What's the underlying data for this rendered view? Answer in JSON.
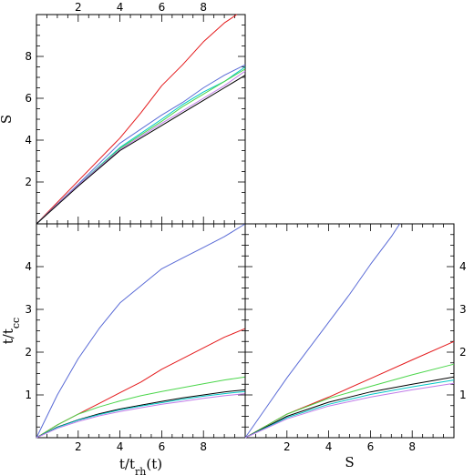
{
  "chart_data": [
    {
      "id": "top-left",
      "type": "line",
      "xlabel": "",
      "ylabel": "S",
      "xlim": [
        0,
        10
      ],
      "ylim": [
        0,
        10
      ],
      "x_ticks_top": [
        "2",
        "4",
        "6",
        "8"
      ],
      "y_ticks": [
        "2",
        "4",
        "6",
        "8"
      ],
      "series": [
        {
          "color": "#e41a1c",
          "x": [
            0,
            2,
            4,
            5,
            6,
            7,
            8,
            9,
            9.6
          ],
          "y": [
            0,
            2.05,
            4.1,
            5.3,
            6.6,
            7.6,
            8.7,
            9.6,
            10.0
          ]
        },
        {
          "color": "#5a6bd6",
          "x": [
            0,
            2,
            4,
            6,
            7,
            8,
            9,
            10
          ],
          "y": [
            0,
            1.9,
            3.85,
            5.2,
            5.8,
            6.5,
            7.1,
            7.6
          ]
        },
        {
          "color": "#00c6c6",
          "x": [
            0,
            2,
            4,
            6,
            7,
            8,
            9,
            10
          ],
          "y": [
            0,
            1.85,
            3.65,
            5.0,
            5.7,
            6.3,
            6.8,
            7.5
          ]
        },
        {
          "color": "#4cd64c",
          "x": [
            0,
            2,
            4,
            6,
            7,
            8,
            9,
            10
          ],
          "y": [
            0,
            1.85,
            3.6,
            4.9,
            5.6,
            6.2,
            6.8,
            7.4
          ]
        },
        {
          "color": "#c07be8",
          "x": [
            0,
            2,
            4,
            6,
            7,
            8,
            9,
            10
          ],
          "y": [
            0,
            1.85,
            3.55,
            4.8,
            5.4,
            6.0,
            6.6,
            7.3
          ]
        },
        {
          "color": "#000000",
          "x": [
            0,
            2,
            4,
            6,
            7,
            8,
            9,
            10
          ],
          "y": [
            0,
            1.8,
            3.5,
            4.7,
            5.3,
            5.9,
            6.5,
            7.1
          ]
        }
      ]
    },
    {
      "id": "bottom-left",
      "type": "line",
      "xlabel": "t/t_rh(t)",
      "ylabel": "t/t_cc",
      "xlim": [
        0,
        10
      ],
      "ylim": [
        0,
        5
      ],
      "x_ticks": [
        "2",
        "4",
        "6",
        "8"
      ],
      "y_ticks": [
        "1",
        "2",
        "3",
        "4"
      ],
      "series": [
        {
          "color": "#5a6bd6",
          "x": [
            0,
            1,
            2,
            3,
            4,
            5,
            6,
            7,
            8,
            9,
            10
          ],
          "y": [
            0,
            1.0,
            1.85,
            2.55,
            3.15,
            3.55,
            3.95,
            4.2,
            4.45,
            4.7,
            5.0
          ]
        },
        {
          "color": "#e41a1c",
          "x": [
            0,
            1,
            2,
            3,
            4,
            5,
            6,
            7,
            8,
            9,
            10
          ],
          "y": [
            0,
            0.3,
            0.55,
            0.8,
            1.05,
            1.3,
            1.6,
            1.85,
            2.1,
            2.35,
            2.55
          ]
        },
        {
          "color": "#4cd64c",
          "x": [
            0,
            1,
            2,
            3,
            4,
            5,
            6,
            7,
            8,
            9,
            10
          ],
          "y": [
            0,
            0.3,
            0.55,
            0.72,
            0.86,
            0.98,
            1.08,
            1.17,
            1.26,
            1.35,
            1.42
          ]
        },
        {
          "color": "#000000",
          "x": [
            0,
            1,
            2,
            3,
            4,
            5,
            6,
            7,
            8,
            9,
            10
          ],
          "y": [
            0,
            0.25,
            0.42,
            0.56,
            0.67,
            0.76,
            0.85,
            0.93,
            1.0,
            1.07,
            1.12
          ]
        },
        {
          "color": "#00c6c6",
          "x": [
            0,
            1,
            2,
            3,
            4,
            5,
            6,
            7,
            8,
            9,
            10
          ],
          "y": [
            0,
            0.24,
            0.41,
            0.54,
            0.65,
            0.74,
            0.82,
            0.9,
            0.97,
            1.03,
            1.08
          ]
        },
        {
          "color": "#c07be8",
          "x": [
            0,
            1,
            2,
            3,
            4,
            5,
            6,
            7,
            8,
            9,
            10
          ],
          "y": [
            0,
            0.22,
            0.38,
            0.51,
            0.61,
            0.7,
            0.78,
            0.85,
            0.92,
            0.98,
            1.03
          ]
        }
      ]
    },
    {
      "id": "bottom-right",
      "type": "line",
      "xlabel": "S",
      "ylabel": "",
      "xlim": [
        0,
        10
      ],
      "ylim": [
        0,
        5
      ],
      "x_ticks": [
        "2",
        "4",
        "6",
        "8"
      ],
      "y_ticks_right": [
        "1",
        "2",
        "3",
        "4"
      ],
      "series": [
        {
          "color": "#5a6bd6",
          "x": [
            0,
            1,
            2,
            3,
            4,
            5,
            6,
            7,
            7.4
          ],
          "y": [
            0,
            0.7,
            1.4,
            2.05,
            2.7,
            3.35,
            4.05,
            4.7,
            5.0
          ]
        },
        {
          "color": "#e41a1c",
          "x": [
            0,
            2,
            4,
            6,
            8,
            10
          ],
          "y": [
            0,
            0.55,
            0.95,
            1.38,
            1.82,
            2.25
          ]
        },
        {
          "color": "#4cd64c",
          "x": [
            0,
            2,
            4,
            6,
            8,
            10
          ],
          "y": [
            0,
            0.55,
            0.92,
            1.2,
            1.47,
            1.72
          ]
        },
        {
          "color": "#000000",
          "x": [
            0,
            2,
            4,
            6,
            8,
            10
          ],
          "y": [
            0,
            0.5,
            0.83,
            1.07,
            1.25,
            1.42
          ]
        },
        {
          "color": "#00c6c6",
          "x": [
            0,
            2,
            4,
            6,
            8,
            10
          ],
          "y": [
            0,
            0.47,
            0.78,
            1.01,
            1.19,
            1.35
          ]
        },
        {
          "color": "#c07be8",
          "x": [
            0,
            2,
            4,
            6,
            8,
            10
          ],
          "y": [
            0,
            0.44,
            0.74,
            0.95,
            1.12,
            1.27
          ]
        }
      ]
    }
  ]
}
